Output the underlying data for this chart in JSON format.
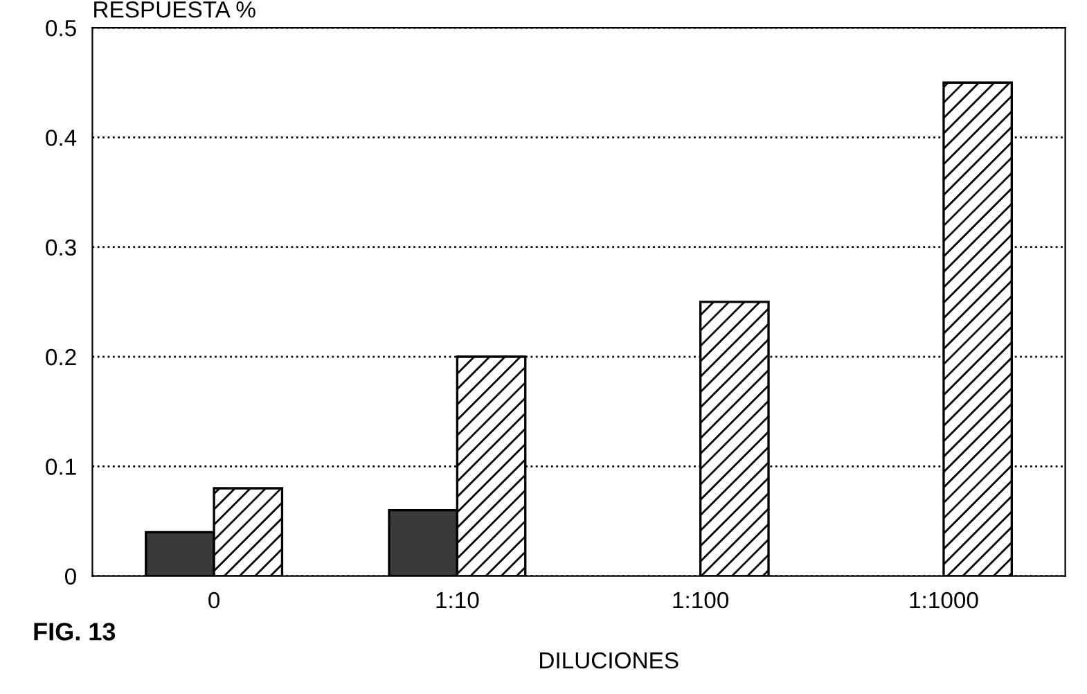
{
  "chart_data": {
    "type": "bar",
    "categories": [
      "0",
      "1:10",
      "1:100",
      "1:1000"
    ],
    "series": [
      {
        "color": "#3a3a3a",
        "values": [
          0.04,
          0.06,
          null,
          null
        ]
      },
      {
        "color": "#000000",
        "values": [
          0.08,
          0.2,
          0.25,
          0.45
        ]
      }
    ],
    "ylabel": "RESPUESTA %",
    "xlabel": "DILUCIONES",
    "annotations": [
      "FIG. 13"
    ],
    "ylim": [
      0,
      0.5
    ],
    "yticks": [
      0,
      0.1,
      0.2,
      0.3,
      0.4,
      0.5
    ],
    "grid": "y",
    "legend": false
  }
}
